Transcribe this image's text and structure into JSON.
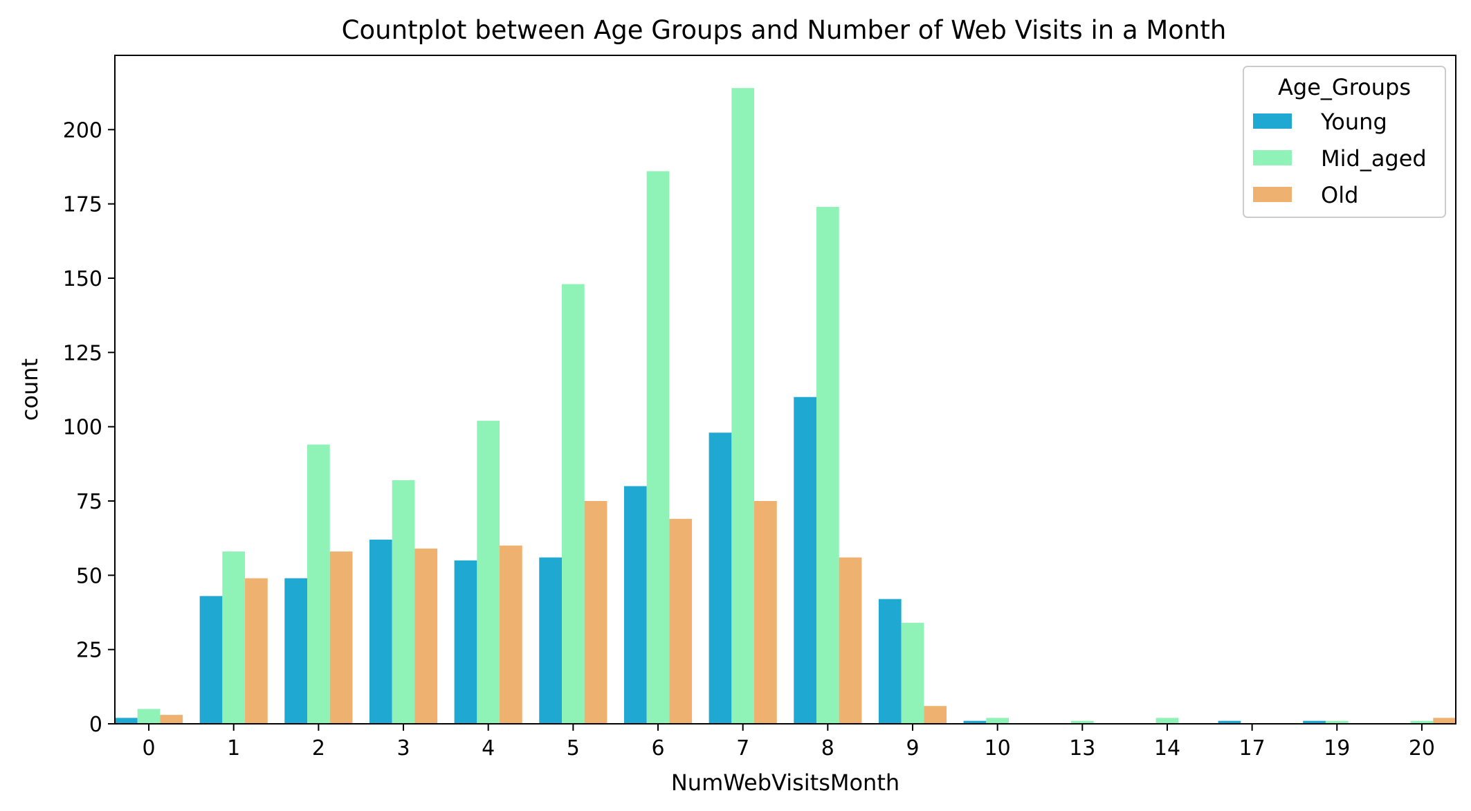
{
  "chart_data": {
    "type": "bar",
    "title": "Countplot between Age Groups and Number of Web Visits in a Month",
    "xlabel": "NumWebVisitsMonth",
    "ylabel": "count",
    "categories": [
      "0",
      "1",
      "2",
      "3",
      "4",
      "5",
      "6",
      "7",
      "8",
      "9",
      "10",
      "13",
      "14",
      "17",
      "19",
      "20"
    ],
    "yticks": [
      "0",
      "25",
      "50",
      "75",
      "100",
      "125",
      "150",
      "175",
      "200"
    ],
    "ylim": [
      0,
      225
    ],
    "grid": false,
    "legend": {
      "title": "Age_Groups",
      "placement": "top-right"
    },
    "series": [
      {
        "name": "Young",
        "color": "#1ea8d2",
        "values": [
          2,
          43,
          49,
          62,
          55,
          56,
          80,
          98,
          110,
          42,
          1,
          0,
          0,
          1,
          1,
          0
        ]
      },
      {
        "name": "Mid_aged",
        "color": "#8ff2b6",
        "values": [
          5,
          58,
          94,
          82,
          102,
          148,
          186,
          214,
          174,
          34,
          2,
          1,
          2,
          0,
          1,
          1
        ]
      },
      {
        "name": "Old",
        "color": "#efb16f",
        "values": [
          3,
          49,
          58,
          59,
          60,
          75,
          69,
          75,
          56,
          6,
          0,
          0,
          0,
          0,
          0,
          2
        ]
      }
    ]
  }
}
